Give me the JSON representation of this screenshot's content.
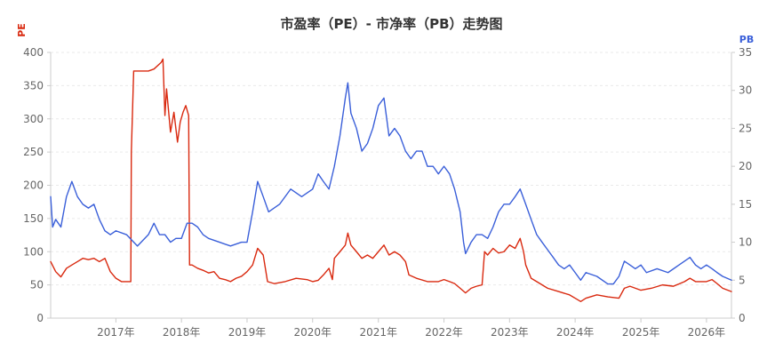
{
  "chart_data": {
    "type": "line",
    "title": "市盈率（PE）- 市净率（PB）走势图",
    "y_left": {
      "label": "PE",
      "ylim": [
        0,
        400
      ],
      "ticks": [
        0,
        50,
        100,
        150,
        200,
        250,
        300,
        350,
        400
      ],
      "color": "#d9290f"
    },
    "y_right": {
      "label": "PB",
      "ylim": [
        0,
        35
      ],
      "ticks": [
        0,
        5,
        10,
        15,
        20,
        25,
        30,
        35
      ],
      "color": "#3a5fd9"
    },
    "xlim": [
      "2016-01-04",
      "2026-05-20"
    ],
    "x_ticks": [
      {
        "date": "2017-01-01",
        "label": "2017年"
      },
      {
        "date": "2018-01-01",
        "label": "2018年"
      },
      {
        "date": "2019-01-01",
        "label": "2019年"
      },
      {
        "date": "2020-01-01",
        "label": "2020年"
      },
      {
        "date": "2021-01-01",
        "label": "2021年"
      },
      {
        "date": "2022-01-01",
        "label": "2022年"
      },
      {
        "date": "2023-01-01",
        "label": "2023年"
      },
      {
        "date": "2024-01-01",
        "label": "2024年"
      },
      {
        "date": "2025-01-01",
        "label": "2025年"
      },
      {
        "date": "2026-01-01",
        "label": "2026年"
      }
    ],
    "grid": true,
    "series": [
      {
        "name": "PE",
        "axis": "left",
        "color": "#d9290f",
        "points": [
          [
            "2016-01-04",
            85
          ],
          [
            "2016-02-01",
            70
          ],
          [
            "2016-03-01",
            62
          ],
          [
            "2016-04-01",
            75
          ],
          [
            "2016-05-01",
            80
          ],
          [
            "2016-06-01",
            85
          ],
          [
            "2016-07-01",
            90
          ],
          [
            "2016-08-01",
            88
          ],
          [
            "2016-09-01",
            90
          ],
          [
            "2016-10-01",
            85
          ],
          [
            "2016-11-01",
            90
          ],
          [
            "2016-12-01",
            70
          ],
          [
            "2017-01-01",
            60
          ],
          [
            "2017-02-01",
            55
          ],
          [
            "2017-03-01",
            55
          ],
          [
            "2017-03-25",
            55
          ],
          [
            "2017-03-28",
            250
          ],
          [
            "2017-04-10",
            372
          ],
          [
            "2017-05-01",
            372
          ],
          [
            "2017-06-01",
            372
          ],
          [
            "2017-07-01",
            372
          ],
          [
            "2017-08-01",
            375
          ],
          [
            "2017-09-10",
            385
          ],
          [
            "2017-09-20",
            390
          ],
          [
            "2017-10-01",
            305
          ],
          [
            "2017-10-10",
            345
          ],
          [
            "2017-11-01",
            280
          ],
          [
            "2017-11-20",
            310
          ],
          [
            "2017-12-10",
            265
          ],
          [
            "2017-12-25",
            295
          ],
          [
            "2018-01-10",
            310
          ],
          [
            "2018-01-25",
            320
          ],
          [
            "2018-02-10",
            305
          ],
          [
            "2018-02-15",
            80
          ],
          [
            "2018-03-01",
            80
          ],
          [
            "2018-04-01",
            75
          ],
          [
            "2018-05-01",
            72
          ],
          [
            "2018-06-01",
            68
          ],
          [
            "2018-07-01",
            70
          ],
          [
            "2018-08-01",
            60
          ],
          [
            "2018-09-01",
            58
          ],
          [
            "2018-10-01",
            55
          ],
          [
            "2018-11-01",
            60
          ],
          [
            "2018-12-01",
            63
          ],
          [
            "2019-01-01",
            70
          ],
          [
            "2019-02-01",
            80
          ],
          [
            "2019-03-01",
            105
          ],
          [
            "2019-04-01",
            95
          ],
          [
            "2019-04-25",
            55
          ],
          [
            "2019-06-01",
            52
          ],
          [
            "2019-08-01",
            55
          ],
          [
            "2019-10-01",
            60
          ],
          [
            "2019-12-01",
            58
          ],
          [
            "2020-01-01",
            55
          ],
          [
            "2020-02-01",
            57
          ],
          [
            "2020-03-01",
            65
          ],
          [
            "2020-04-01",
            75
          ],
          [
            "2020-04-20",
            58
          ],
          [
            "2020-05-01",
            90
          ],
          [
            "2020-06-01",
            100
          ],
          [
            "2020-07-01",
            110
          ],
          [
            "2020-07-15",
            128
          ],
          [
            "2020-08-01",
            110
          ],
          [
            "2020-09-01",
            100
          ],
          [
            "2020-10-01",
            90
          ],
          [
            "2020-11-01",
            95
          ],
          [
            "2020-12-01",
            90
          ],
          [
            "2021-01-01",
            100
          ],
          [
            "2021-02-01",
            110
          ],
          [
            "2021-03-01",
            95
          ],
          [
            "2021-04-01",
            100
          ],
          [
            "2021-05-01",
            95
          ],
          [
            "2021-06-01",
            85
          ],
          [
            "2021-06-20",
            65
          ],
          [
            "2021-08-01",
            60
          ],
          [
            "2021-10-01",
            55
          ],
          [
            "2021-12-01",
            55
          ],
          [
            "2022-01-01",
            58
          ],
          [
            "2022-02-01",
            55
          ],
          [
            "2022-03-01",
            52
          ],
          [
            "2022-04-01",
            45
          ],
          [
            "2022-05-01",
            38
          ],
          [
            "2022-06-01",
            45
          ],
          [
            "2022-07-01",
            48
          ],
          [
            "2022-08-01",
            50
          ],
          [
            "2022-08-15",
            100
          ],
          [
            "2022-09-01",
            95
          ],
          [
            "2022-10-01",
            105
          ],
          [
            "2022-11-01",
            98
          ],
          [
            "2022-12-01",
            100
          ],
          [
            "2023-01-01",
            110
          ],
          [
            "2023-02-01",
            105
          ],
          [
            "2023-03-01",
            120
          ],
          [
            "2023-03-20",
            100
          ],
          [
            "2023-04-01",
            80
          ],
          [
            "2023-05-01",
            60
          ],
          [
            "2023-06-01",
            55
          ],
          [
            "2023-08-01",
            45
          ],
          [
            "2023-10-01",
            40
          ],
          [
            "2023-12-01",
            35
          ],
          [
            "2024-01-01",
            30
          ],
          [
            "2024-02-01",
            25
          ],
          [
            "2024-03-01",
            30
          ],
          [
            "2024-05-01",
            35
          ],
          [
            "2024-07-01",
            32
          ],
          [
            "2024-09-01",
            30
          ],
          [
            "2024-10-01",
            45
          ],
          [
            "2024-11-01",
            48
          ],
          [
            "2025-01-01",
            42
          ],
          [
            "2025-03-01",
            45
          ],
          [
            "2025-05-01",
            50
          ],
          [
            "2025-07-01",
            48
          ],
          [
            "2025-09-01",
            55
          ],
          [
            "2025-10-01",
            60
          ],
          [
            "2025-11-01",
            55
          ],
          [
            "2026-01-01",
            55
          ],
          [
            "2026-02-01",
            58
          ],
          [
            "2026-03-01",
            52
          ],
          [
            "2026-04-01",
            45
          ],
          [
            "2026-05-20",
            40
          ]
        ]
      },
      {
        "name": "PB",
        "axis": "right",
        "color": "#3a5fd9",
        "points": [
          [
            "2016-01-04",
            16
          ],
          [
            "2016-01-15",
            12
          ],
          [
            "2016-02-01",
            13
          ],
          [
            "2016-03-01",
            12
          ],
          [
            "2016-04-01",
            16
          ],
          [
            "2016-05-01",
            18
          ],
          [
            "2016-06-01",
            16
          ],
          [
            "2016-07-01",
            15
          ],
          [
            "2016-08-01",
            14.5
          ],
          [
            "2016-09-01",
            15
          ],
          [
            "2016-10-01",
            13
          ],
          [
            "2016-11-01",
            11.5
          ],
          [
            "2016-12-01",
            11
          ],
          [
            "2017-01-01",
            11.5
          ],
          [
            "2017-03-01",
            11
          ],
          [
            "2017-05-01",
            9.5
          ],
          [
            "2017-07-01",
            11
          ],
          [
            "2017-08-01",
            12.5
          ],
          [
            "2017-09-01",
            11
          ],
          [
            "2017-10-01",
            11
          ],
          [
            "2017-11-01",
            10
          ],
          [
            "2017-12-01",
            10.5
          ],
          [
            "2018-01-01",
            10.5
          ],
          [
            "2018-02-01",
            12.5
          ],
          [
            "2018-03-01",
            12.5
          ],
          [
            "2018-04-01",
            12
          ],
          [
            "2018-05-01",
            11
          ],
          [
            "2018-06-01",
            10.5
          ],
          [
            "2018-08-01",
            10
          ],
          [
            "2018-10-01",
            9.5
          ],
          [
            "2018-12-01",
            10
          ],
          [
            "2019-01-01",
            10
          ],
          [
            "2019-02-01",
            14
          ],
          [
            "2019-03-01",
            18
          ],
          [
            "2019-04-01",
            16
          ],
          [
            "2019-05-01",
            14
          ],
          [
            "2019-07-01",
            15
          ],
          [
            "2019-09-01",
            17
          ],
          [
            "2019-11-01",
            16
          ],
          [
            "2020-01-01",
            17
          ],
          [
            "2020-02-01",
            19
          ],
          [
            "2020-03-01",
            18
          ],
          [
            "2020-04-01",
            17
          ],
          [
            "2020-05-01",
            20
          ],
          [
            "2020-06-01",
            24
          ],
          [
            "2020-07-01",
            29
          ],
          [
            "2020-07-15",
            31
          ],
          [
            "2020-08-01",
            27
          ],
          [
            "2020-09-01",
            25
          ],
          [
            "2020-10-01",
            22
          ],
          [
            "2020-11-01",
            23
          ],
          [
            "2020-12-01",
            25
          ],
          [
            "2021-01-01",
            28
          ],
          [
            "2021-02-01",
            29
          ],
          [
            "2021-03-01",
            24
          ],
          [
            "2021-04-01",
            25
          ],
          [
            "2021-05-01",
            24
          ],
          [
            "2021-06-01",
            22
          ],
          [
            "2021-07-01",
            21
          ],
          [
            "2021-08-01",
            22
          ],
          [
            "2021-09-01",
            22
          ],
          [
            "2021-10-01",
            20
          ],
          [
            "2021-11-01",
            20
          ],
          [
            "2021-12-01",
            19
          ],
          [
            "2022-01-01",
            20
          ],
          [
            "2022-02-01",
            19
          ],
          [
            "2022-03-01",
            17
          ],
          [
            "2022-04-01",
            14
          ],
          [
            "2022-04-20",
            10
          ],
          [
            "2022-05-01",
            8.5
          ],
          [
            "2022-06-01",
            10
          ],
          [
            "2022-07-01",
            11
          ],
          [
            "2022-08-01",
            11
          ],
          [
            "2022-09-01",
            10.5
          ],
          [
            "2022-10-01",
            12
          ],
          [
            "2022-11-01",
            14
          ],
          [
            "2022-12-01",
            15
          ],
          [
            "2023-01-01",
            15
          ],
          [
            "2023-02-01",
            16
          ],
          [
            "2023-03-01",
            17
          ],
          [
            "2023-04-01",
            15
          ],
          [
            "2023-05-01",
            13
          ],
          [
            "2023-06-01",
            11
          ],
          [
            "2023-07-01",
            10
          ],
          [
            "2023-08-01",
            9
          ],
          [
            "2023-09-01",
            8
          ],
          [
            "2023-10-01",
            7
          ],
          [
            "2023-11-01",
            6.5
          ],
          [
            "2023-12-01",
            7
          ],
          [
            "2024-01-01",
            6
          ],
          [
            "2024-02-01",
            5
          ],
          [
            "2024-03-01",
            6
          ],
          [
            "2024-05-01",
            5.5
          ],
          [
            "2024-07-01",
            4.5
          ],
          [
            "2024-08-01",
            4.5
          ],
          [
            "2024-09-01",
            5.5
          ],
          [
            "2024-10-01",
            7.5
          ],
          [
            "2024-11-01",
            7
          ],
          [
            "2024-12-01",
            6.5
          ],
          [
            "2025-01-01",
            7
          ],
          [
            "2025-02-01",
            6
          ],
          [
            "2025-04-01",
            6.5
          ],
          [
            "2025-06-01",
            6
          ],
          [
            "2025-08-01",
            7
          ],
          [
            "2025-10-01",
            8
          ],
          [
            "2025-11-01",
            7
          ],
          [
            "2025-12-01",
            6.5
          ],
          [
            "2026-01-01",
            7
          ],
          [
            "2026-02-01",
            6.5
          ],
          [
            "2026-03-01",
            6
          ],
          [
            "2026-04-01",
            5.5
          ],
          [
            "2026-05-20",
            5
          ]
        ]
      }
    ]
  }
}
